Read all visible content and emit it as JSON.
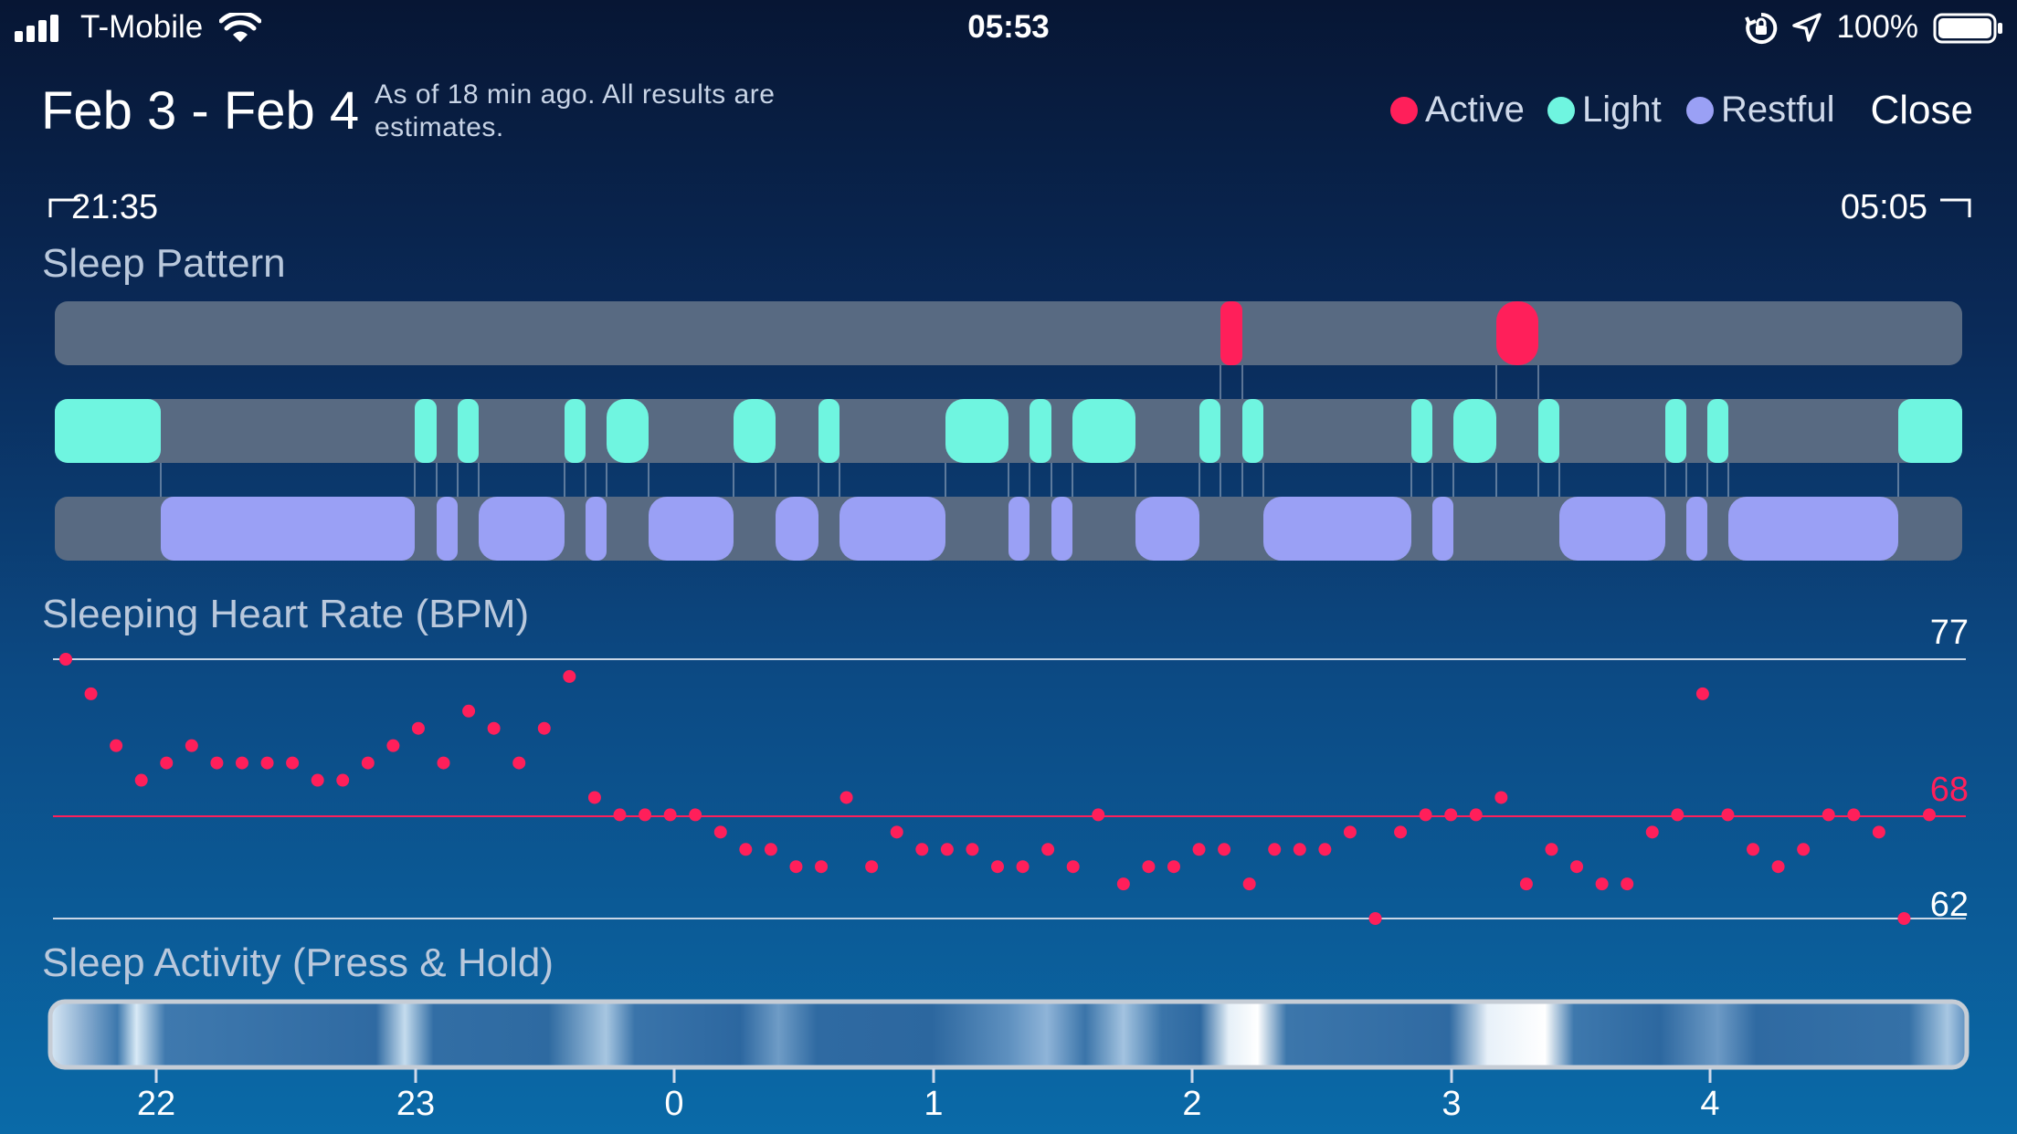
{
  "status_bar": {
    "carrier": "T-Mobile",
    "time": "05:53",
    "battery": "100%"
  },
  "header": {
    "title": "Feb 3 - Feb 4",
    "subtitle": "As of 18 min ago. All results are estimates.",
    "legend": [
      {
        "label": "Active",
        "color": "#ff1f5a"
      },
      {
        "label": "Light",
        "color": "#6ff5e0"
      },
      {
        "label": "Restful",
        "color": "#9aa0f5"
      }
    ],
    "close_label": "Close"
  },
  "range": {
    "start": "21:35",
    "end": "05:05"
  },
  "sleep_pattern": {
    "title": "Sleep Pattern"
  },
  "heart_rate": {
    "title": "Sleeping Heart Rate (BPM)",
    "max_label": "77",
    "avg_label": "68",
    "min_label": "62"
  },
  "sleep_activity": {
    "title": "Sleep Activity (Press & Hold)"
  },
  "x_axis_ticks": [
    "22",
    "23",
    "0",
    "1",
    "2",
    "3",
    "4"
  ],
  "chart_data": {
    "type": "scatter",
    "title": "Sleeping Heart Rate (BPM)",
    "ylim": [
      62,
      77
    ],
    "reference_lines": {
      "max": 77,
      "avg": 68,
      "min": 62
    },
    "values": [
      77,
      75,
      72,
      70,
      71,
      72,
      71,
      71,
      71,
      71,
      70,
      70,
      71,
      72,
      73,
      71,
      74,
      73,
      71,
      73,
      76,
      69,
      68,
      68,
      68,
      68,
      67,
      66,
      66,
      65,
      65,
      69,
      65,
      67,
      66,
      66,
      66,
      65,
      65,
      66,
      65,
      68,
      64,
      65,
      65,
      66,
      66,
      64,
      66,
      66,
      66,
      67,
      62,
      67,
      68,
      68,
      68,
      69,
      64,
      66,
      65,
      64,
      64,
      67,
      68,
      75,
      68,
      66,
      65,
      66,
      68,
      68,
      67,
      62,
      68
    ]
  }
}
